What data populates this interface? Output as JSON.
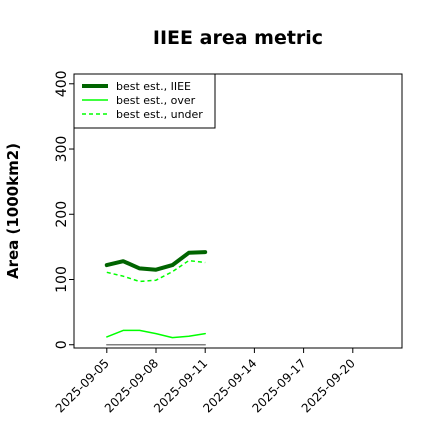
{
  "chart_data": {
    "type": "line",
    "title": "IIEE area metric",
    "xlabel": "",
    "ylabel": "Area (1000km2)",
    "ylim": [
      -5,
      415
    ],
    "xlim": [
      "2025-09-03",
      "2025-09-23"
    ],
    "yticks": [
      0,
      100,
      200,
      300,
      400
    ],
    "xticks": [
      "2025-09-05",
      "2025-09-08",
      "2025-09-11",
      "2025-09-14",
      "2025-09-17",
      "2025-09-20"
    ],
    "grid": false,
    "legend_position": "top-left",
    "x": [
      "2025-09-05",
      "2025-09-06",
      "2025-09-07",
      "2025-09-08",
      "2025-09-09",
      "2025-09-10",
      "2025-09-11"
    ],
    "series": [
      {
        "name": "best est., IIEE",
        "color": "#006400",
        "style": "solid",
        "width": 4,
        "values": [
          122,
          128,
          117,
          115,
          122,
          141,
          142
        ]
      },
      {
        "name": "best est., over",
        "color": "#00ff00",
        "style": "solid",
        "width": 1.5,
        "values": [
          12,
          22,
          22,
          17,
          11,
          13,
          17
        ]
      },
      {
        "name": "best est., under",
        "color": "#00ff00",
        "style": "dashed",
        "width": 1.5,
        "values": [
          111,
          105,
          97,
          99,
          112,
          129,
          126
        ]
      },
      {
        "color": "#808080",
        "style": "solid",
        "width": 1.5,
        "values": [
          0,
          0,
          0,
          0,
          0,
          0,
          0
        ]
      }
    ]
  }
}
